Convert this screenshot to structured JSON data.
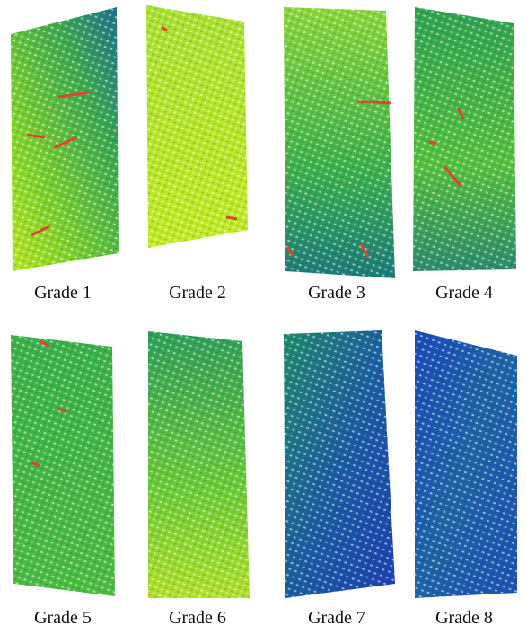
{
  "panels": [
    {
      "label": "Grade 1"
    },
    {
      "label": "Grade 2"
    },
    {
      "label": "Grade 3"
    },
    {
      "label": "Grade 4"
    },
    {
      "label": "Grade 5"
    },
    {
      "label": "Grade 6"
    },
    {
      "label": "Grade 7"
    },
    {
      "label": "Grade 8"
    }
  ]
}
